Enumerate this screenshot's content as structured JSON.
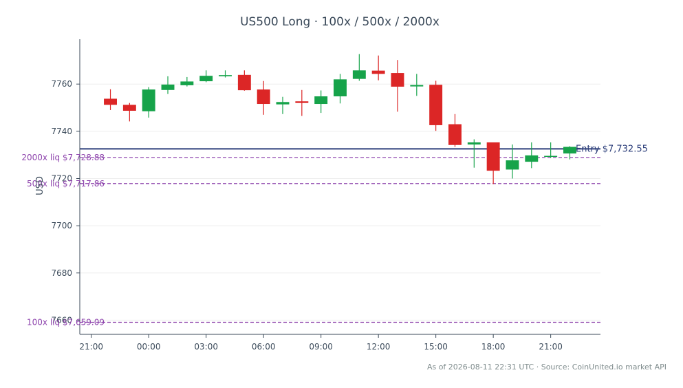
{
  "chart_data": {
    "type": "candlestick",
    "title": "US500 Long · 100x / 500x / 2000x",
    "ylabel": "USD",
    "xlabel": "",
    "ylim": [
      7654,
      7779
    ],
    "yticks": [
      7660,
      7680,
      7700,
      7720,
      7740,
      7760
    ],
    "xlim": [
      -0.6,
      26.6
    ],
    "xticks": [
      {
        "i": 0,
        "label": "21:00"
      },
      {
        "i": 3,
        "label": "00:00"
      },
      {
        "i": 6,
        "label": "03:00"
      },
      {
        "i": 9,
        "label": "06:00"
      },
      {
        "i": 12,
        "label": "09:00"
      },
      {
        "i": 15,
        "label": "12:00"
      },
      {
        "i": 18,
        "label": "15:00"
      },
      {
        "i": 21,
        "label": "18:00"
      },
      {
        "i": 24,
        "label": "21:00"
      }
    ],
    "candles": [
      {
        "i": 1,
        "o": 7753.8,
        "h": 7757.8,
        "l": 7749.0,
        "c": 7751.2
      },
      {
        "i": 2,
        "o": 7751.2,
        "h": 7752.0,
        "l": 7744.2,
        "c": 7748.7
      },
      {
        "i": 3,
        "o": 7748.5,
        "h": 7758.7,
        "l": 7745.8,
        "c": 7757.7
      },
      {
        "i": 4,
        "o": 7757.5,
        "h": 7763.3,
        "l": 7755.8,
        "c": 7759.8
      },
      {
        "i": 5,
        "o": 7759.5,
        "h": 7763.0,
        "l": 7759.0,
        "c": 7761.1
      },
      {
        "i": 6,
        "o": 7761.2,
        "h": 7765.8,
        "l": 7760.8,
        "c": 7763.5
      },
      {
        "i": 7,
        "o": 7763.3,
        "h": 7765.8,
        "l": 7762.8,
        "c": 7763.8
      },
      {
        "i": 8,
        "o": 7763.9,
        "h": 7765.8,
        "l": 7757.2,
        "c": 7757.4
      },
      {
        "i": 9,
        "o": 7757.7,
        "h": 7761.3,
        "l": 7747.0,
        "c": 7751.6
      },
      {
        "i": 10,
        "o": 7751.4,
        "h": 7754.6,
        "l": 7747.3,
        "c": 7752.4
      },
      {
        "i": 11,
        "o": 7752.7,
        "h": 7757.5,
        "l": 7746.5,
        "c": 7752.0
      },
      {
        "i": 12,
        "o": 7751.6,
        "h": 7757.3,
        "l": 7747.8,
        "c": 7754.8
      },
      {
        "i": 13,
        "o": 7754.8,
        "h": 7764.3,
        "l": 7751.8,
        "c": 7762.0
      },
      {
        "i": 14,
        "o": 7762.2,
        "h": 7772.7,
        "l": 7761.4,
        "c": 7765.8
      },
      {
        "i": 15,
        "o": 7765.7,
        "h": 7772.1,
        "l": 7761.6,
        "c": 7764.3
      },
      {
        "i": 16,
        "o": 7764.7,
        "h": 7770.2,
        "l": 7748.3,
        "c": 7758.9
      },
      {
        "i": 17,
        "o": 7759.0,
        "h": 7764.3,
        "l": 7755.0,
        "c": 7759.6
      },
      {
        "i": 18,
        "o": 7759.7,
        "h": 7761.4,
        "l": 7740.2,
        "c": 7742.6
      },
      {
        "i": 19,
        "o": 7743.0,
        "h": 7747.3,
        "l": 7733.4,
        "c": 7734.2
      },
      {
        "i": 20,
        "o": 7734.4,
        "h": 7736.6,
        "l": 7724.6,
        "c": 7735.3
      },
      {
        "i": 21,
        "o": 7735.3,
        "h": 7735.3,
        "l": 7717.6,
        "c": 7723.3
      },
      {
        "i": 22,
        "o": 7723.8,
        "h": 7734.4,
        "l": 7720.0,
        "c": 7727.7
      },
      {
        "i": 23,
        "o": 7727.1,
        "h": 7735.3,
        "l": 7724.4,
        "c": 7729.8
      },
      {
        "i": 24,
        "o": 7729.2,
        "h": 7735.3,
        "l": 7728.7,
        "c": 7729.6
      },
      {
        "i": 25,
        "o": 7730.6,
        "h": 7733.7,
        "l": 7728.1,
        "c": 7733.4
      }
    ],
    "entry": {
      "value": 7732.55,
      "label": "Entry $7,732.55"
    },
    "liquidations": [
      {
        "value": 7728.88,
        "label": "2000x liq $7,728.88"
      },
      {
        "value": 7717.86,
        "label": "500x liq $7,717.86"
      },
      {
        "value": 7659.09,
        "label": "100x liq $7,659.09"
      }
    ],
    "colors": {
      "up": "#16a34a",
      "down": "#dc2626",
      "entry": "#2c3e7a",
      "liq": "#8e44ad",
      "axis": "#3b4a5a",
      "grid": "#eeeeee"
    },
    "grid": true
  },
  "footer": "As of 2026-08-11 22:31 UTC · Source: CoinUnited.io market API"
}
